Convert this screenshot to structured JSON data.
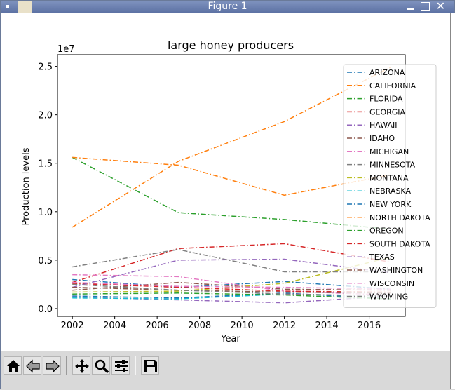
{
  "window": {
    "title": "Figure 1"
  },
  "toolbar": {
    "buttons": [
      {
        "name": "home-button",
        "icon": "home-icon"
      },
      {
        "name": "back-button",
        "icon": "arrow-left-icon"
      },
      {
        "name": "forward-button",
        "icon": "arrow-right-icon"
      },
      {
        "name": "pan-button",
        "icon": "move-icon"
      },
      {
        "name": "zoom-button",
        "icon": "magnifier-icon"
      },
      {
        "name": "configure-subplots-button",
        "icon": "sliders-icon"
      },
      {
        "name": "save-button",
        "icon": "floppy-disk-icon"
      }
    ]
  },
  "chart_data": {
    "type": "line",
    "title": "large honey producers",
    "xlabel": "Year",
    "ylabel": "Production levels",
    "y_multiplier_label": "1e7",
    "xlim": [
      2001.3,
      2017.7
    ],
    "ylim": [
      -0.08,
      2.62
    ],
    "y_scale_factor": 10000000,
    "xticks": [
      2002,
      2004,
      2006,
      2008,
      2010,
      2012,
      2014,
      2016
    ],
    "xtick_labels": [
      "2002",
      "2004",
      "2006",
      "2008",
      "2010",
      "2012",
      "2014",
      "2016"
    ],
    "yticks": [
      0.0,
      0.5,
      1.0,
      1.5,
      2.0,
      2.5
    ],
    "ytick_labels": [
      "0.0",
      "0.5",
      "1.0",
      "1.5",
      "2.0",
      "2.5"
    ],
    "line_style": "dashdot",
    "grid": false,
    "legend_position": "upper right",
    "x": [
      2002,
      2007,
      2012,
      2017
    ],
    "series": [
      {
        "name": "ARIZONA",
        "color": "#1f77b4",
        "values": [
          0.3,
          0.22,
          0.28,
          0.2
        ]
      },
      {
        "name": "CALIFORNIA",
        "color": "#ff7f0e",
        "values": [
          0.84,
          1.52,
          1.93,
          2.49
        ]
      },
      {
        "name": "FLORIDA",
        "color": "#2ca02c",
        "values": [
          1.56,
          0.99,
          0.92,
          0.82
        ]
      },
      {
        "name": "GEORGIA",
        "color": "#d62728",
        "values": [
          0.27,
          0.62,
          0.67,
          0.48
        ]
      },
      {
        "name": "HAWAII",
        "color": "#9467bd",
        "values": [
          0.12,
          0.09,
          0.06,
          0.13
        ]
      },
      {
        "name": "IDAHO",
        "color": "#8c564b",
        "values": [
          0.19,
          0.27,
          0.2,
          0.19
        ]
      },
      {
        "name": "MICHIGAN",
        "color": "#e377c2",
        "values": [
          0.35,
          0.33,
          0.18,
          0.14
        ]
      },
      {
        "name": "MINNESOTA",
        "color": "#7f7f7f",
        "values": [
          0.43,
          0.61,
          0.38,
          0.38
        ]
      },
      {
        "name": "MONTANA",
        "color": "#bcbd22",
        "values": [
          0.17,
          0.18,
          0.26,
          0.53
        ]
      },
      {
        "name": "NEBRASKA",
        "color": "#17becf",
        "values": [
          0.11,
          0.1,
          0.15,
          0.13
        ]
      },
      {
        "name": "NEW YORK",
        "color": "#1f77b4",
        "values": [
          0.13,
          0.11,
          0.16,
          0.1
        ]
      },
      {
        "name": "NORTH DAKOTA",
        "color": "#ff7f0e",
        "values": [
          1.56,
          1.48,
          1.17,
          1.38
        ]
      },
      {
        "name": "OREGON",
        "color": "#2ca02c",
        "values": [
          0.15,
          0.16,
          0.14,
          0.1
        ]
      },
      {
        "name": "SOUTH DAKOTA",
        "color": "#d62728",
        "values": [
          0.26,
          0.22,
          0.18,
          0.17
        ]
      },
      {
        "name": "TEXAS",
        "color": "#9467bd",
        "values": [
          0.22,
          0.5,
          0.51,
          0.37
        ]
      },
      {
        "name": "WASHINGTON",
        "color": "#8c564b",
        "values": [
          0.22,
          0.19,
          0.17,
          0.16
        ]
      },
      {
        "name": "WISCONSIN",
        "color": "#e377c2",
        "values": [
          0.27,
          0.23,
          0.22,
          0.2
        ]
      },
      {
        "name": "WYOMING",
        "color": "#7f7f7f",
        "values": [
          0.25,
          0.19,
          0.15,
          0.13
        ]
      }
    ]
  }
}
